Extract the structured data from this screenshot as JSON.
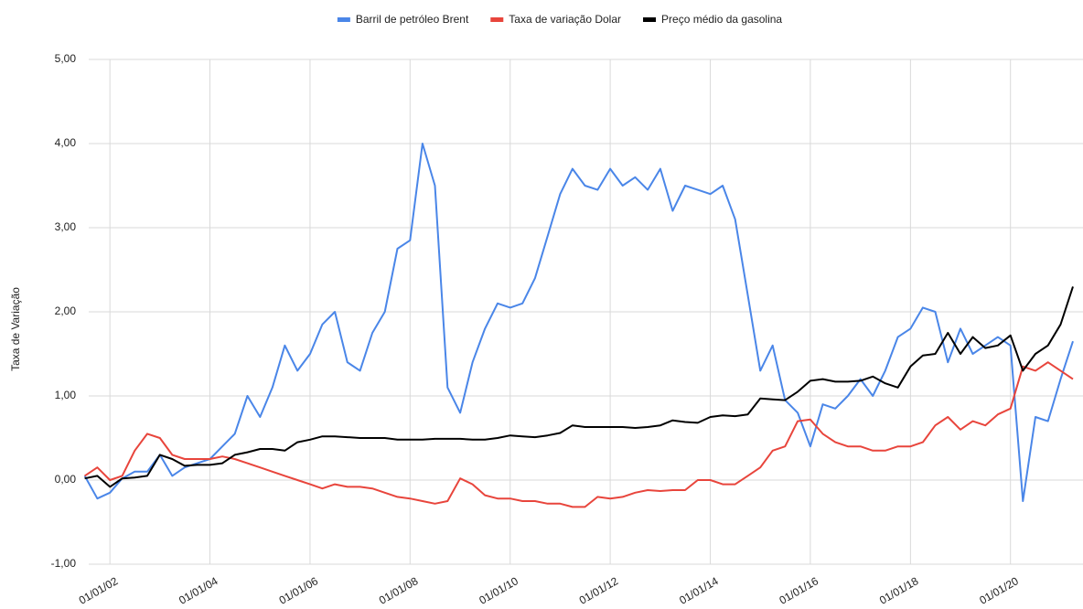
{
  "chart_data": {
    "type": "line",
    "y_label": "Taxa de Variação",
    "x": [
      "01/07/01",
      "01/10/01",
      "01/01/02",
      "01/04/02",
      "01/07/02",
      "01/10/02",
      "01/01/03",
      "01/04/03",
      "01/07/03",
      "01/10/03",
      "01/01/04",
      "01/04/04",
      "01/07/04",
      "01/10/04",
      "01/01/05",
      "01/04/05",
      "01/07/05",
      "01/10/05",
      "01/01/06",
      "01/04/06",
      "01/07/06",
      "01/10/06",
      "01/01/07",
      "01/04/07",
      "01/07/07",
      "01/10/07",
      "01/01/08",
      "01/04/08",
      "01/07/08",
      "01/10/08",
      "01/01/09",
      "01/04/09",
      "01/07/09",
      "01/10/09",
      "01/01/10",
      "01/04/10",
      "01/07/10",
      "01/10/10",
      "01/01/11",
      "01/04/11",
      "01/07/11",
      "01/10/11",
      "01/01/12",
      "01/04/12",
      "01/07/12",
      "01/10/12",
      "01/01/13",
      "01/04/13",
      "01/07/13",
      "01/10/13",
      "01/01/14",
      "01/04/14",
      "01/07/14",
      "01/10/14",
      "01/01/15",
      "01/04/15",
      "01/07/15",
      "01/10/15",
      "01/01/16",
      "01/04/16",
      "01/07/16",
      "01/10/16",
      "01/01/17",
      "01/04/17",
      "01/07/17",
      "01/10/17",
      "01/01/18",
      "01/04/18",
      "01/07/18",
      "01/10/18",
      "01/01/19",
      "01/04/19",
      "01/07/19",
      "01/10/19",
      "01/01/20",
      "01/04/20",
      "01/07/20",
      "01/10/20",
      "01/01/21",
      "01/04/21"
    ],
    "series": [
      {
        "name": "Barril de petróleo Brent",
        "color": "#4a86e8",
        "values": [
          0.05,
          -0.22,
          -0.15,
          0.02,
          0.1,
          0.1,
          0.3,
          0.05,
          0.15,
          0.2,
          0.25,
          0.4,
          0.55,
          1.0,
          0.75,
          1.1,
          1.6,
          1.3,
          1.5,
          1.85,
          2.0,
          1.4,
          1.3,
          1.75,
          2.0,
          2.75,
          2.85,
          4.0,
          3.5,
          1.1,
          0.8,
          1.4,
          1.8,
          2.1,
          2.05,
          2.1,
          2.4,
          2.9,
          3.4,
          3.7,
          3.5,
          3.45,
          3.7,
          3.5,
          3.6,
          3.45,
          3.7,
          3.2,
          3.5,
          3.45,
          3.4,
          3.5,
          3.1,
          2.2,
          1.3,
          1.6,
          0.95,
          0.8,
          0.4,
          0.9,
          0.85,
          1.0,
          1.2,
          1.0,
          1.3,
          1.7,
          1.8,
          2.05,
          2.0,
          1.4,
          1.8,
          1.5,
          1.6,
          1.7,
          1.6,
          -0.25,
          0.75,
          0.7,
          1.2,
          1.65
        ]
      },
      {
        "name": "Taxa de variação Dolar",
        "color": "#e8453c",
        "values": [
          0.05,
          0.15,
          0.0,
          0.05,
          0.35,
          0.55,
          0.5,
          0.3,
          0.25,
          0.25,
          0.25,
          0.28,
          0.25,
          0.2,
          0.15,
          0.1,
          0.05,
          0.0,
          -0.05,
          -0.1,
          -0.05,
          -0.08,
          -0.08,
          -0.1,
          -0.15,
          -0.2,
          -0.22,
          -0.25,
          -0.28,
          -0.25,
          0.02,
          -0.05,
          -0.18,
          -0.22,
          -0.22,
          -0.25,
          -0.25,
          -0.28,
          -0.28,
          -0.32,
          -0.32,
          -0.2,
          -0.22,
          -0.2,
          -0.15,
          -0.12,
          -0.13,
          -0.12,
          -0.12,
          0.0,
          0.0,
          -0.05,
          -0.05,
          0.05,
          0.15,
          0.35,
          0.4,
          0.7,
          0.72,
          0.55,
          0.45,
          0.4,
          0.4,
          0.35,
          0.35,
          0.4,
          0.4,
          0.45,
          0.65,
          0.75,
          0.6,
          0.7,
          0.65,
          0.78,
          0.85,
          1.35,
          1.3,
          1.4,
          1.3,
          1.2
        ]
      },
      {
        "name": "Preço médio da gasolina",
        "color": "#000000",
        "values": [
          0.02,
          0.05,
          -0.08,
          0.02,
          0.03,
          0.05,
          0.3,
          0.25,
          0.17,
          0.18,
          0.18,
          0.2,
          0.3,
          0.33,
          0.37,
          0.37,
          0.35,
          0.45,
          0.48,
          0.52,
          0.52,
          0.51,
          0.5,
          0.5,
          0.5,
          0.48,
          0.48,
          0.48,
          0.49,
          0.49,
          0.49,
          0.48,
          0.48,
          0.5,
          0.53,
          0.52,
          0.51,
          0.53,
          0.56,
          0.65,
          0.63,
          0.63,
          0.63,
          0.63,
          0.62,
          0.63,
          0.65,
          0.71,
          0.69,
          0.68,
          0.75,
          0.77,
          0.76,
          0.78,
          0.97,
          0.96,
          0.95,
          1.05,
          1.18,
          1.2,
          1.17,
          1.17,
          1.18,
          1.23,
          1.15,
          1.1,
          1.35,
          1.48,
          1.5,
          1.75,
          1.5,
          1.7,
          1.57,
          1.6,
          1.72,
          1.3,
          1.5,
          1.6,
          1.85,
          2.3
        ]
      }
    ],
    "xticks": [
      "01/01/02",
      "01/01/04",
      "01/01/06",
      "01/01/08",
      "01/01/10",
      "01/01/12",
      "01/01/14",
      "01/01/16",
      "01/01/18",
      "01/01/20"
    ],
    "ylim": [
      -1,
      5
    ],
    "yticks": [
      {
        "value": -1,
        "label": "-1,00"
      },
      {
        "value": 0,
        "label": "0,00"
      },
      {
        "value": 1,
        "label": "1,00"
      },
      {
        "value": 2,
        "label": "2,00"
      },
      {
        "value": 3,
        "label": "3,00"
      },
      {
        "value": 4,
        "label": "4,00"
      },
      {
        "value": 5,
        "label": "5,00"
      }
    ],
    "grid": true,
    "legend": "top"
  }
}
